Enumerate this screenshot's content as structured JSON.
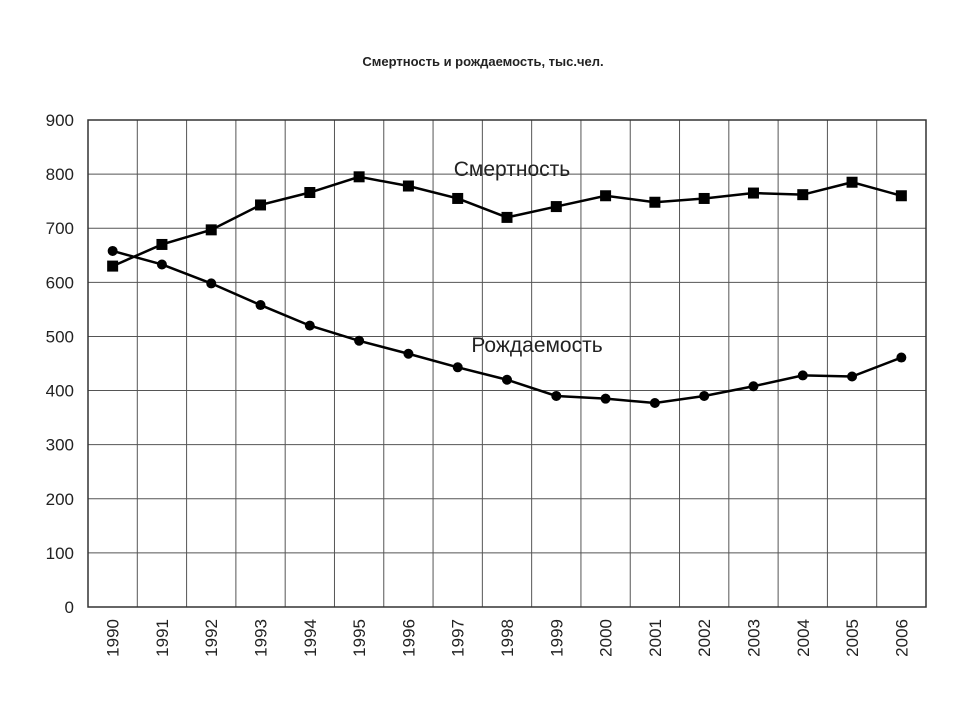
{
  "chart_data": {
    "type": "line",
    "title": "Смертность и рождаемость, тыс.чел.",
    "xlabel": "",
    "ylabel": "",
    "categories": [
      "1990",
      "1991",
      "1992",
      "1993",
      "1994",
      "1995",
      "1996",
      "1997",
      "1998",
      "1999",
      "2000",
      "2001",
      "2002",
      "2003",
      "2004",
      "2005",
      "2006"
    ],
    "ylim": [
      0,
      900
    ],
    "yticks": [
      "0",
      "100",
      "200",
      "300",
      "400",
      "500",
      "600",
      "700",
      "800",
      "900"
    ],
    "grid": true,
    "series": [
      {
        "name": "Смертность",
        "marker": "square",
        "values": [
          630,
          670,
          697,
          743,
          766,
          795,
          778,
          755,
          720,
          740,
          760,
          748,
          755,
          765,
          762,
          785,
          760
        ]
      },
      {
        "name": "Рождаемость",
        "marker": "circle",
        "values": [
          658,
          633,
          598,
          558,
          520,
          492,
          468,
          443,
          420,
          390,
          385,
          377,
          390,
          408,
          428,
          426,
          461
        ]
      }
    ]
  }
}
